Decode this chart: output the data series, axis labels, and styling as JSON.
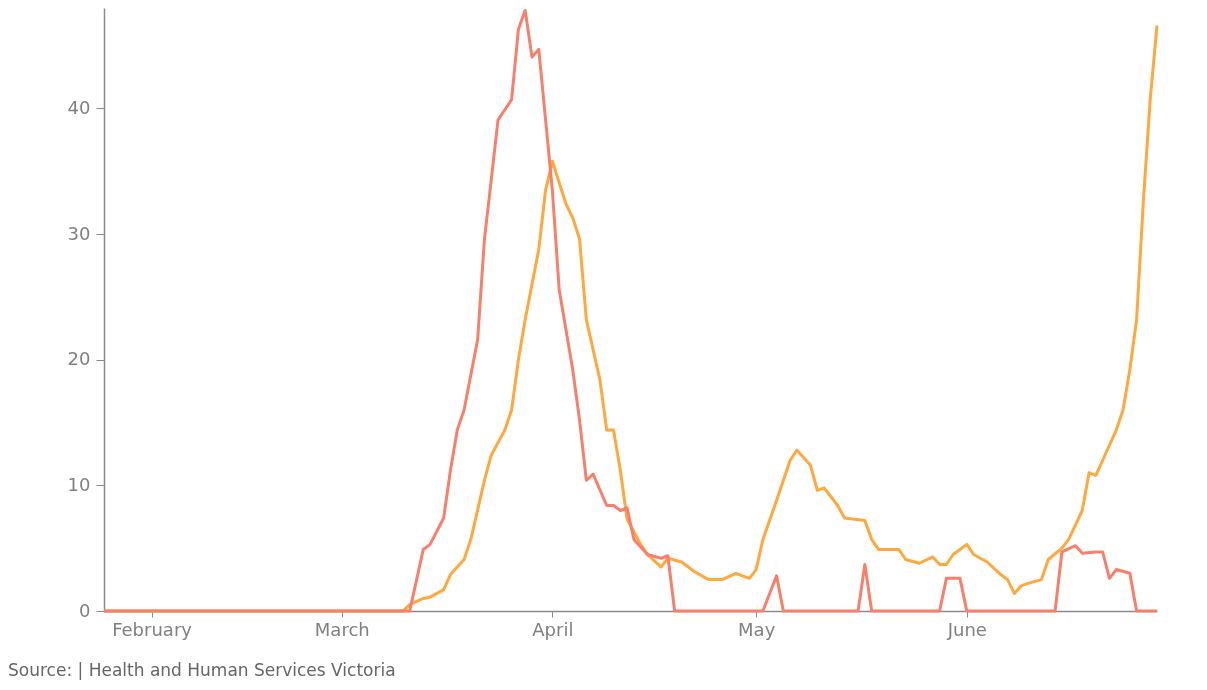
{
  "chart_data": {
    "type": "line",
    "annotations": [
      "Source: | Health and Human Services Victoria"
    ],
    "xlim": [
      "--01-25",
      "--06-29"
    ],
    "xticks": [
      {
        "value": "--02-01",
        "label": "February"
      },
      {
        "value": "--03-01",
        "label": "March"
      },
      {
        "value": "--04-01",
        "label": "April"
      },
      {
        "value": "--05-01",
        "label": "May"
      },
      {
        "value": "--06-01",
        "label": "June"
      }
    ],
    "ylim": [
      0,
      48
    ],
    "yticks": [
      0,
      10,
      20,
      30,
      40
    ],
    "grid": false,
    "series": [
      {
        "color": "#ffa83e",
        "x": [
          "--01-25",
          "--03-10",
          "--03-11",
          "--03-13",
          "--03-14",
          "--03-16",
          "--03-17",
          "--03-19",
          "--03-20",
          "--03-22",
          "--03-23",
          "--03-25",
          "--03-26",
          "--03-27",
          "--03-28",
          "--03-30",
          "--03-31",
          "--04-01",
          "--04-03",
          "--04-04",
          "--04-05",
          "--04-06",
          "--04-08",
          "--04-09",
          "--04-10",
          "--04-11",
          "--04-12",
          "--04-14",
          "--04-15",
          "--04-17",
          "--04-18",
          "--04-20",
          "--04-22",
          "--04-24",
          "--04-26",
          "--04-28",
          "--04-30",
          "--05-01",
          "--05-02",
          "--05-04",
          "--05-06",
          "--05-07",
          "--05-09",
          "--05-10",
          "--05-11",
          "--05-13",
          "--05-14",
          "--05-17",
          "--05-18",
          "--05-19",
          "--05-22",
          "--05-23",
          "--05-25",
          "--05-27",
          "--05-28",
          "--05-29",
          "--05-30",
          "--06-01",
          "--06-02",
          "--06-04",
          "--06-06",
          "--06-07",
          "--06-08",
          "--06-09",
          "--06-10",
          "--06-12",
          "--06-13",
          "--06-15",
          "--06-16",
          "--06-18",
          "--06-19",
          "--06-20",
          "--06-21",
          "--06-23",
          "--06-24",
          "--06-25",
          "--06-26",
          "--06-27",
          "--06-28",
          "--06-29"
        ],
        "values": [
          0,
          0,
          0.5,
          1.0,
          1.1,
          1.7,
          2.9,
          4.1,
          5.7,
          10.4,
          12.4,
          14.4,
          16,
          20,
          23.2,
          28.8,
          33.5,
          35.8,
          32.4,
          31.3,
          29.6,
          23.2,
          18.4,
          14.4,
          14.4,
          11.2,
          7.3,
          5.3,
          4.5,
          3.5,
          4.2,
          3.9,
          3.1,
          2.5,
          2.5,
          3.0,
          2.6,
          3.3,
          5.7,
          8.8,
          12,
          12.8,
          11.6,
          9.6,
          9.8,
          8.4,
          7.4,
          7.2,
          5.7,
          4.9,
          4.9,
          4.1,
          3.8,
          4.3,
          3.7,
          3.7,
          4.5,
          5.3,
          4.5,
          3.9,
          2.9,
          2.5,
          1.4,
          2.0,
          2.2,
          2.5,
          4.1,
          5.0,
          5.7,
          8.0,
          11,
          10.8,
          12,
          14.4,
          16,
          19.2,
          23.2,
          32.7,
          40.7,
          46.6
        ]
      },
      {
        "color": "#f7806c",
        "x": [
          "--01-25",
          "--03-11",
          "--03-13",
          "--03-14",
          "--03-16",
          "--03-17",
          "--03-18",
          "--03-19",
          "--03-21",
          "--03-22",
          "--03-23",
          "--03-24",
          "--03-26",
          "--03-27",
          "--03-28",
          "--03-29",
          "--03-30",
          "--03-31",
          "--04-01",
          "--04-02",
          "--04-04",
          "--04-05",
          "--04-06",
          "--04-07",
          "--04-09",
          "--04-10",
          "--04-11",
          "--04-12",
          "--04-13",
          "--04-15",
          "--04-17",
          "--04-18",
          "--04-19",
          "--05-02",
          "--05-04",
          "--05-05",
          "--05-16",
          "--05-17",
          "--05-18",
          "--05-28",
          "--05-29",
          "--05-31",
          "--06-01",
          "--06-14",
          "--06-15",
          "--06-17",
          "--06-18",
          "--06-20",
          "--06-21",
          "--06-22",
          "--06-23",
          "--06-25",
          "--06-26",
          "--06-29"
        ],
        "values": [
          0,
          0,
          4.9,
          5.3,
          7.4,
          11.2,
          14.4,
          16,
          21.6,
          29.6,
          34.3,
          39.1,
          40.7,
          46.3,
          47.8,
          44.1,
          44.7,
          39.1,
          33.5,
          25.6,
          19.2,
          15.2,
          10.4,
          10.9,
          8.4,
          8.4,
          8.0,
          8.2,
          5.7,
          4.5,
          4.2,
          4.4,
          0,
          0,
          2.8,
          0,
          0,
          3.7,
          0,
          0,
          2.6,
          2.6,
          0,
          0,
          4.7,
          5.2,
          4.6,
          4.7,
          4.7,
          2.6,
          3.3,
          3.0,
          0,
          0
        ]
      }
    ]
  }
}
